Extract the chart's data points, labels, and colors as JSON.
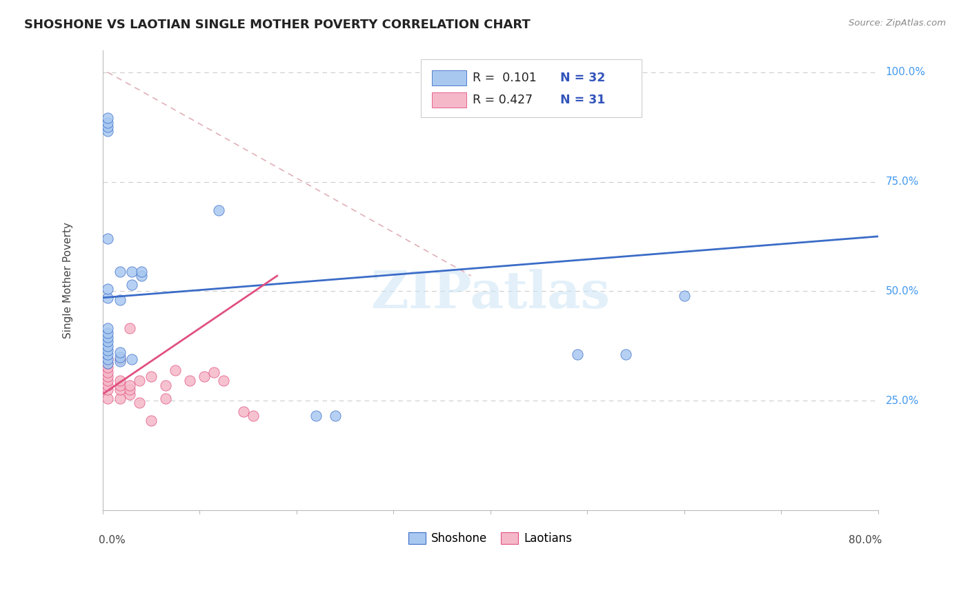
{
  "title": "SHOSHONE VS LAOTIAN SINGLE MOTHER POVERTY CORRELATION CHART",
  "source": "Source: ZipAtlas.com",
  "ylabel": "Single Mother Poverty",
  "watermark": "ZIPatlas",
  "shoshone_color": "#a8c8f0",
  "laotian_color": "#f5b8c8",
  "trend_shoshone_color": "#3b6cc7",
  "trend_laotian_color": "#e05080",
  "ref_line_color": "#e0b0b8",
  "background_color": "#ffffff",
  "grid_color": "#cccccc",
  "xlim": [
    0.0,
    0.8
  ],
  "ylim": [
    0.0,
    1.05
  ],
  "shoshone_x": [
    0.005,
    0.005,
    0.005,
    0.005,
    0.005,
    0.005,
    0.005,
    0.005,
    0.005,
    0.005,
    0.005,
    0.018,
    0.018,
    0.018,
    0.018,
    0.018,
    0.03,
    0.03,
    0.03,
    0.04,
    0.04,
    0.005,
    0.12,
    0.22,
    0.24,
    0.49,
    0.54,
    0.6,
    0.005,
    0.005,
    0.005,
    0.005
  ],
  "shoshone_y": [
    0.335,
    0.345,
    0.355,
    0.365,
    0.375,
    0.385,
    0.395,
    0.405,
    0.415,
    0.485,
    0.505,
    0.34,
    0.35,
    0.36,
    0.48,
    0.545,
    0.345,
    0.515,
    0.545,
    0.535,
    0.545,
    0.62,
    0.685,
    0.215,
    0.215,
    0.355,
    0.355,
    0.49,
    0.865,
    0.875,
    0.885,
    0.895
  ],
  "laotian_x": [
    0.005,
    0.005,
    0.005,
    0.005,
    0.005,
    0.005,
    0.005,
    0.005,
    0.005,
    0.018,
    0.018,
    0.018,
    0.018,
    0.018,
    0.028,
    0.028,
    0.028,
    0.028,
    0.038,
    0.038,
    0.05,
    0.05,
    0.065,
    0.065,
    0.075,
    0.09,
    0.105,
    0.115,
    0.125,
    0.145,
    0.155
  ],
  "laotian_y": [
    0.255,
    0.275,
    0.285,
    0.295,
    0.305,
    0.315,
    0.325,
    0.335,
    0.345,
    0.255,
    0.275,
    0.285,
    0.295,
    0.345,
    0.265,
    0.275,
    0.285,
    0.415,
    0.245,
    0.295,
    0.205,
    0.305,
    0.255,
    0.285,
    0.32,
    0.295,
    0.305,
    0.315,
    0.295,
    0.225,
    0.215
  ],
  "shoshone_trend": [
    0.0,
    0.8,
    0.485,
    0.625
  ],
  "laotian_trend": [
    0.0,
    0.18,
    0.265,
    0.535
  ],
  "ref_line": [
    0.005,
    0.38,
    1.0,
    0.535
  ]
}
